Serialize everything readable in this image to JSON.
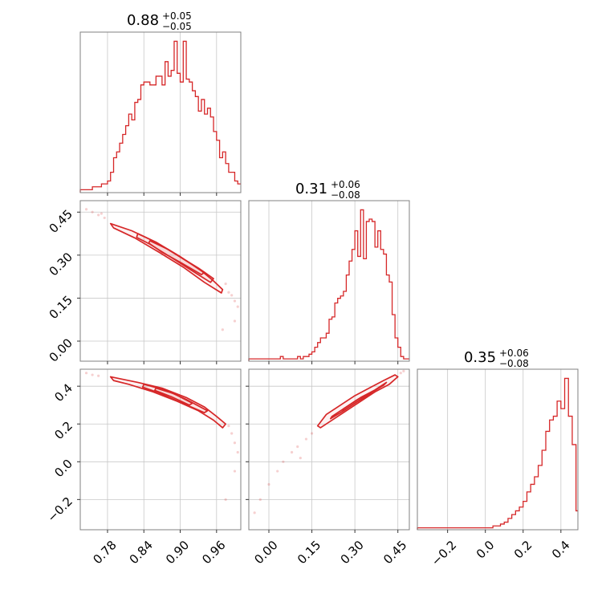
{
  "figure": {
    "type": "corner-plot",
    "color": "#d62728",
    "grid": true
  },
  "chart_data": {
    "type": "corner",
    "parameters": [
      {
        "title": {
          "value": "0.88",
          "plus": "+0.05",
          "minus": "−0.05"
        },
        "range": [
          0.735,
          1.0
        ],
        "ticks": [
          0.78,
          0.84,
          0.9,
          0.96
        ],
        "tick_labels": [
          "0.78",
          "0.84",
          "0.90",
          "0.96"
        ],
        "hist_x": [
          0.735,
          0.74,
          0.745,
          0.75,
          0.755,
          0.76,
          0.765,
          0.77,
          0.775,
          0.78,
          0.785,
          0.79,
          0.795,
          0.8,
          0.805,
          0.81,
          0.815,
          0.82,
          0.825,
          0.83,
          0.835,
          0.84,
          0.845,
          0.85,
          0.855,
          0.86,
          0.865,
          0.87,
          0.875,
          0.88,
          0.885,
          0.89,
          0.895,
          0.9,
          0.905,
          0.91,
          0.915,
          0.92,
          0.925,
          0.93,
          0.935,
          0.94,
          0.945,
          0.95,
          0.955,
          0.96,
          0.965,
          0.97,
          0.975,
          0.98,
          0.985,
          0.99,
          0.995
        ],
        "hist_counts": [
          1,
          1,
          1,
          1,
          2,
          2,
          2,
          3,
          3,
          4,
          7,
          12,
          14,
          17,
          20,
          23,
          27,
          25,
          31,
          32,
          37,
          38,
          38,
          37,
          37,
          40,
          40,
          37,
          45,
          40,
          42,
          52,
          41,
          38,
          52,
          39,
          38,
          35,
          33,
          28,
          32,
          27,
          29,
          26,
          21,
          18,
          12,
          14,
          10,
          7,
          7,
          4,
          3
        ]
      },
      {
        "title": {
          "value": "0.31",
          "plus": "+0.06",
          "minus": "−0.08"
        },
        "range": [
          -0.07,
          0.49
        ],
        "ticks": [
          0.0,
          0.15,
          0.3,
          0.45
        ],
        "tick_labels": [
          "0.00",
          "0.15",
          "0.30",
          "0.45"
        ],
        "hist_x": [
          -0.07,
          -0.06,
          -0.05,
          -0.04,
          -0.03,
          -0.02,
          -0.01,
          0.0,
          0.01,
          0.02,
          0.03,
          0.04,
          0.05,
          0.06,
          0.07,
          0.08,
          0.09,
          0.1,
          0.11,
          0.12,
          0.13,
          0.14,
          0.15,
          0.16,
          0.17,
          0.18,
          0.19,
          0.2,
          0.21,
          0.22,
          0.23,
          0.24,
          0.25,
          0.26,
          0.27,
          0.28,
          0.29,
          0.3,
          0.31,
          0.32,
          0.33,
          0.34,
          0.35,
          0.36,
          0.37,
          0.38,
          0.39,
          0.4,
          0.41,
          0.42,
          0.43,
          0.44,
          0.45,
          0.46,
          0.47,
          0.48
        ],
        "hist_counts": [
          1,
          1,
          1,
          1,
          1,
          1,
          1,
          1,
          1,
          1,
          1,
          2,
          1,
          1,
          1,
          1,
          1,
          2,
          1,
          2,
          2,
          3,
          4,
          6,
          8,
          10,
          10,
          12,
          18,
          19,
          25,
          27,
          28,
          30,
          37,
          43,
          48,
          56,
          45,
          65,
          44,
          60,
          61,
          60,
          49,
          56,
          48,
          46,
          37,
          34,
          20,
          10,
          6,
          2,
          1,
          1
        ]
      },
      {
        "title": {
          "value": "0.35",
          "plus": "+0.06",
          "minus": "−0.08"
        },
        "range": [
          -0.36,
          0.49
        ],
        "ticks": [
          -0.2,
          0.0,
          0.2,
          0.4
        ],
        "tick_labels": [
          "−0.2",
          "0.0",
          "0.2",
          "0.4"
        ],
        "hist_x": [
          -0.36,
          -0.34,
          -0.32,
          -0.3,
          -0.28,
          -0.26,
          -0.24,
          -0.22,
          -0.2,
          -0.18,
          -0.16,
          -0.14,
          -0.12,
          -0.1,
          -0.08,
          -0.06,
          -0.04,
          -0.02,
          0.0,
          0.02,
          0.04,
          0.06,
          0.08,
          0.1,
          0.12,
          0.14,
          0.16,
          0.18,
          0.2,
          0.22,
          0.24,
          0.26,
          0.28,
          0.3,
          0.32,
          0.34,
          0.36,
          0.38,
          0.4,
          0.42,
          0.44,
          0.46,
          0.48
        ],
        "hist_counts": [
          1,
          1,
          1,
          1,
          1,
          1,
          1,
          1,
          1,
          1,
          1,
          1,
          1,
          1,
          1,
          1,
          1,
          1,
          1,
          1,
          2,
          2,
          3,
          4,
          6,
          8,
          10,
          12,
          15,
          20,
          24,
          28,
          34,
          42,
          52,
          58,
          60,
          68,
          64,
          80,
          60,
          45,
          10
        ]
      }
    ],
    "panels": [
      {
        "row": 1,
        "col": 0,
        "ylim": [
          -0.07,
          0.49
        ],
        "yticks": [
          0.0,
          0.15,
          0.3,
          0.45
        ],
        "ytick_labels": [
          "0.00",
          "0.15",
          "0.30",
          "0.45"
        ],
        "contours": [
          [
            [
              0.785,
              0.41
            ],
            [
              0.82,
              0.385
            ],
            [
              0.86,
              0.345
            ],
            [
              0.9,
              0.295
            ],
            [
              0.935,
              0.245
            ],
            [
              0.955,
              0.21
            ],
            [
              0.97,
              0.18
            ],
            [
              0.968,
              0.168
            ],
            [
              0.94,
              0.205
            ],
            [
              0.905,
              0.258
            ],
            [
              0.865,
              0.31
            ],
            [
              0.825,
              0.36
            ],
            [
              0.79,
              0.395
            ]
          ],
          [
            [
              0.83,
              0.375
            ],
            [
              0.86,
              0.345
            ],
            [
              0.895,
              0.3
            ],
            [
              0.93,
              0.255
            ],
            [
              0.955,
              0.218
            ],
            [
              0.95,
              0.205
            ],
            [
              0.92,
              0.245
            ],
            [
              0.885,
              0.292
            ],
            [
              0.85,
              0.338
            ],
            [
              0.828,
              0.362
            ]
          ],
          [
            [
              0.85,
              0.35
            ],
            [
              0.88,
              0.32
            ],
            [
              0.91,
              0.28
            ],
            [
              0.94,
              0.24
            ],
            [
              0.935,
              0.232
            ],
            [
              0.9,
              0.275
            ],
            [
              0.87,
              0.31
            ],
            [
              0.848,
              0.342
            ]
          ]
        ],
        "scatter": [
          [
            0.745,
            0.46
          ],
          [
            0.755,
            0.45
          ],
          [
            0.765,
            0.44
          ],
          [
            0.77,
            0.445
          ],
          [
            0.775,
            0.43
          ],
          [
            0.985,
            0.16
          ],
          [
            0.99,
            0.14
          ],
          [
            0.995,
            0.12
          ],
          [
            0.98,
            0.17
          ],
          [
            0.975,
            0.2
          ],
          [
            0.97,
            0.04
          ],
          [
            0.99,
            0.07
          ]
        ]
      },
      {
        "row": 2,
        "col": 0,
        "ylim": [
          -0.36,
          0.49
        ],
        "yticks": [
          -0.2,
          0.0,
          0.2,
          0.4
        ],
        "ytick_labels": [
          "−0.2",
          "0.0",
          "0.2",
          "0.4"
        ],
        "contours": [
          [
            [
              0.785,
              0.45
            ],
            [
              0.83,
              0.42
            ],
            [
              0.87,
              0.39
            ],
            [
              0.91,
              0.34
            ],
            [
              0.94,
              0.29
            ],
            [
              0.96,
              0.24
            ],
            [
              0.975,
              0.2
            ],
            [
              0.97,
              0.18
            ],
            [
              0.955,
              0.22
            ],
            [
              0.93,
              0.27
            ],
            [
              0.895,
              0.32
            ],
            [
              0.855,
              0.37
            ],
            [
              0.815,
              0.41
            ],
            [
              0.79,
              0.43
            ]
          ],
          [
            [
              0.84,
              0.41
            ],
            [
              0.875,
              0.38
            ],
            [
              0.91,
              0.33
            ],
            [
              0.945,
              0.27
            ],
            [
              0.94,
              0.26
            ],
            [
              0.9,
              0.315
            ],
            [
              0.865,
              0.365
            ],
            [
              0.838,
              0.395
            ]
          ],
          [
            [
              0.86,
              0.39
            ],
            [
              0.89,
              0.36
            ],
            [
              0.92,
              0.31
            ],
            [
              0.915,
              0.3
            ],
            [
              0.885,
              0.345
            ],
            [
              0.858,
              0.378
            ]
          ]
        ],
        "scatter": [
          [
            0.745,
            0.47
          ],
          [
            0.755,
            0.46
          ],
          [
            0.765,
            0.455
          ],
          [
            0.985,
            0.15
          ],
          [
            0.99,
            0.1
          ],
          [
            0.995,
            0.05
          ],
          [
            0.98,
            0.19
          ],
          [
            0.99,
            -0.05
          ],
          [
            0.975,
            -0.2
          ]
        ]
      },
      {
        "row": 2,
        "col": 1,
        "ylim": [
          -0.36,
          0.49
        ],
        "contours": [
          [
            [
              0.17,
              0.19
            ],
            [
              0.2,
              0.25
            ],
            [
              0.25,
              0.3
            ],
            [
              0.3,
              0.35
            ],
            [
              0.35,
              0.39
            ],
            [
              0.4,
              0.43
            ],
            [
              0.44,
              0.46
            ],
            [
              0.45,
              0.45
            ],
            [
              0.42,
              0.41
            ],
            [
              0.37,
              0.37
            ],
            [
              0.32,
              0.32
            ],
            [
              0.27,
              0.27
            ],
            [
              0.22,
              0.22
            ],
            [
              0.18,
              0.18
            ]
          ],
          [
            [
              0.22,
              0.24
            ],
            [
              0.27,
              0.29
            ],
            [
              0.32,
              0.34
            ],
            [
              0.37,
              0.38
            ],
            [
              0.41,
              0.42
            ],
            [
              0.4,
              0.405
            ],
            [
              0.35,
              0.36
            ],
            [
              0.3,
              0.31
            ],
            [
              0.25,
              0.26
            ],
            [
              0.215,
              0.228
            ]
          ],
          [
            [
              0.26,
              0.28
            ],
            [
              0.31,
              0.33
            ],
            [
              0.36,
              0.37
            ],
            [
              0.355,
              0.36
            ],
            [
              0.305,
              0.315
            ],
            [
              0.258,
              0.268
            ]
          ]
        ],
        "scatter": [
          [
            0.15,
            0.15
          ],
          [
            0.13,
            0.12
          ],
          [
            0.1,
            0.08
          ],
          [
            0.08,
            0.05
          ],
          [
            0.05,
            0.0
          ],
          [
            0.03,
            -0.05
          ],
          [
            0.0,
            -0.12
          ],
          [
            -0.03,
            -0.2
          ],
          [
            -0.05,
            -0.27
          ],
          [
            0.11,
            0.02
          ],
          [
            0.46,
            0.47
          ],
          [
            0.47,
            0.48
          ]
        ]
      }
    ]
  }
}
